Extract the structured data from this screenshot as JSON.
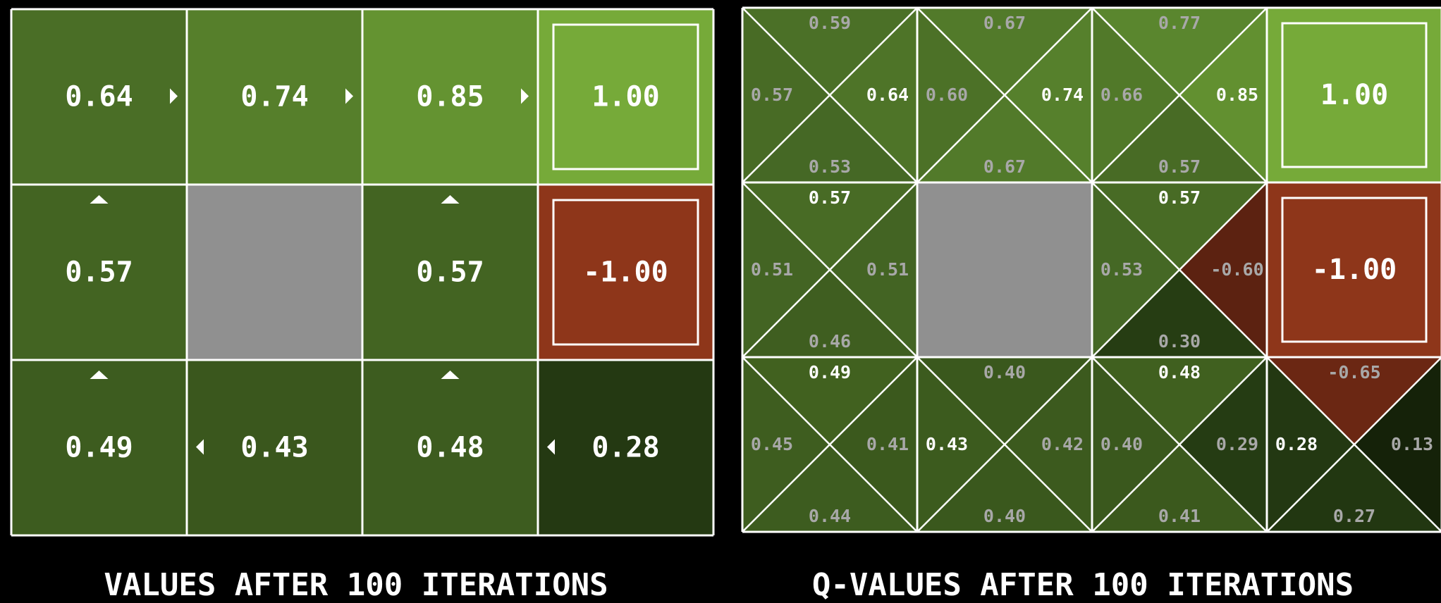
{
  "values_panel": {
    "caption": "VALUES AFTER 100 ITERATIONS",
    "cells": [
      {
        "row": 0,
        "col": 0,
        "type": "normal",
        "value": "0.64",
        "policy": "right",
        "color": "#4a6e26"
      },
      {
        "row": 0,
        "col": 1,
        "type": "normal",
        "value": "0.74",
        "policy": "right",
        "color": "#567f2b"
      },
      {
        "row": 0,
        "col": 2,
        "type": "normal",
        "value": "0.85",
        "policy": "right",
        "color": "#649331"
      },
      {
        "row": 0,
        "col": 3,
        "type": "terminal",
        "value": "1.00",
        "color": "#76aa39"
      },
      {
        "row": 1,
        "col": 0,
        "type": "normal",
        "value": "0.57",
        "policy": "up",
        "color": "#436422"
      },
      {
        "row": 1,
        "col": 1,
        "type": "wall",
        "color": "#909090"
      },
      {
        "row": 1,
        "col": 2,
        "type": "normal",
        "value": "0.57",
        "policy": "up",
        "color": "#436422"
      },
      {
        "row": 1,
        "col": 3,
        "type": "terminal",
        "value": "-1.00",
        "color": "#8e361a"
      },
      {
        "row": 2,
        "col": 0,
        "type": "normal",
        "value": "0.49",
        "policy": "up",
        "color": "#3d5c1f"
      },
      {
        "row": 2,
        "col": 1,
        "type": "normal",
        "value": "0.43",
        "policy": "left",
        "color": "#3a571d"
      },
      {
        "row": 2,
        "col": 2,
        "type": "normal",
        "value": "0.48",
        "policy": "up",
        "color": "#3d5c1f"
      },
      {
        "row": 2,
        "col": 3,
        "type": "normal",
        "value": "0.28",
        "policy": "left",
        "color": "#243912"
      }
    ]
  },
  "qvalues_panel": {
    "caption": "Q-VALUES AFTER 100 ITERATIONS",
    "cells": [
      {
        "row": 0,
        "col": 0,
        "type": "normal",
        "q": {
          "up": {
            "value": "0.59",
            "color": "#4b7027",
            "best": false
          },
          "right": {
            "value": "0.64",
            "color": "#4e7428",
            "best": true
          },
          "down": {
            "value": "0.53",
            "color": "#456825",
            "best": false
          },
          "left": {
            "value": "0.57",
            "color": "#486b25",
            "best": false
          }
        }
      },
      {
        "row": 0,
        "col": 1,
        "type": "normal",
        "q": {
          "up": {
            "value": "0.67",
            "color": "#527a2a",
            "best": false
          },
          "right": {
            "value": "0.74",
            "color": "#56802c",
            "best": true
          },
          "down": {
            "value": "0.67",
            "color": "#527a2a",
            "best": false
          },
          "left": {
            "value": "0.60",
            "color": "#4c7127",
            "best": false
          }
        }
      },
      {
        "row": 0,
        "col": 2,
        "type": "normal",
        "q": {
          "up": {
            "value": "0.77",
            "color": "#5a862e",
            "best": false
          },
          "right": {
            "value": "0.85",
            "color": "#629030",
            "best": true
          },
          "down": {
            "value": "0.57",
            "color": "#486b25",
            "best": false
          },
          "left": {
            "value": "0.66",
            "color": "#517929",
            "best": false
          }
        }
      },
      {
        "row": 0,
        "col": 3,
        "type": "terminal",
        "value": "1.00",
        "color": "#76aa39"
      },
      {
        "row": 1,
        "col": 0,
        "type": "normal",
        "q": {
          "up": {
            "value": "0.57",
            "color": "#486b25",
            "best": true
          },
          "right": {
            "value": "0.51",
            "color": "#436423",
            "best": false
          },
          "down": {
            "value": "0.46",
            "color": "#3f5e20",
            "best": false
          },
          "left": {
            "value": "0.51",
            "color": "#436423",
            "best": false
          }
        }
      },
      {
        "row": 1,
        "col": 1,
        "type": "wall",
        "color": "#909090"
      },
      {
        "row": 1,
        "col": 2,
        "type": "normal",
        "q": {
          "up": {
            "value": "0.57",
            "color": "#486b25",
            "best": true
          },
          "right": {
            "value": "-0.60",
            "color": "#5c2211",
            "best": false
          },
          "down": {
            "value": "0.30",
            "color": "#263d13",
            "best": false
          },
          "left": {
            "value": "0.53",
            "color": "#456825",
            "best": false
          }
        }
      },
      {
        "row": 1,
        "col": 3,
        "type": "terminal",
        "value": "-1.00",
        "color": "#8e361a"
      },
      {
        "row": 2,
        "col": 0,
        "type": "normal",
        "q": {
          "up": {
            "value": "0.49",
            "color": "#41611f",
            "best": true
          },
          "right": {
            "value": "0.41",
            "color": "#3b591d",
            "best": false
          },
          "down": {
            "value": "0.44",
            "color": "#3d5c1f",
            "best": false
          },
          "left": {
            "value": "0.45",
            "color": "#3e5d1f",
            "best": false
          }
        }
      },
      {
        "row": 2,
        "col": 1,
        "type": "normal",
        "q": {
          "up": {
            "value": "0.40",
            "color": "#3a581d",
            "best": false
          },
          "right": {
            "value": "0.42",
            "color": "#3c5a1e",
            "best": false
          },
          "down": {
            "value": "0.40",
            "color": "#3a581d",
            "best": false
          },
          "left": {
            "value": "0.43",
            "color": "#3c5b1e",
            "best": true
          }
        }
      },
      {
        "row": 2,
        "col": 2,
        "type": "normal",
        "q": {
          "up": {
            "value": "0.48",
            "color": "#40601f",
            "best": true
          },
          "right": {
            "value": "0.29",
            "color": "#253c13",
            "best": false
          },
          "down": {
            "value": "0.41",
            "color": "#3b591d",
            "best": false
          },
          "left": {
            "value": "0.40",
            "color": "#3a581d",
            "best": false
          }
        }
      },
      {
        "row": 2,
        "col": 3,
        "type": "normal",
        "q": {
          "up": {
            "value": "-0.65",
            "color": "#6b2713",
            "best": false
          },
          "right": {
            "value": "0.13",
            "color": "#152209",
            "best": false
          },
          "down": {
            "value": "0.27",
            "color": "#223711",
            "best": false
          },
          "left": {
            "value": "0.28",
            "color": "#233812",
            "best": true
          }
        }
      }
    ]
  }
}
